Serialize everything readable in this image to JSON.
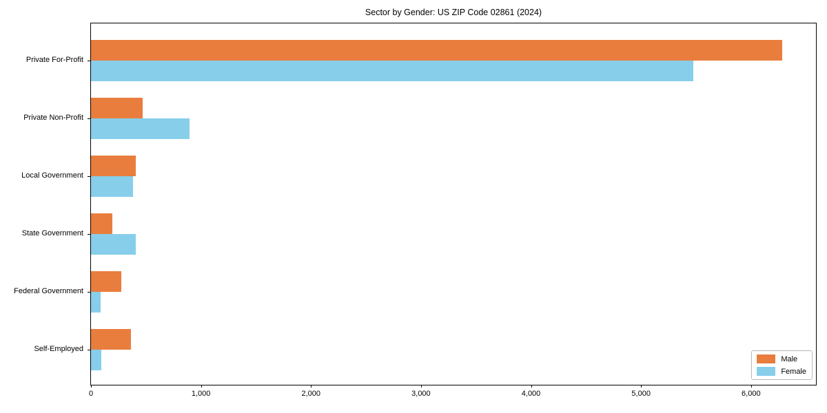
{
  "title": "Sector by Gender: US ZIP Code 02861 (2024)",
  "colors": {
    "male": "#e97d3d",
    "female": "#87ceeb",
    "axis": "#000000",
    "legend_border": "#b7b7b7",
    "background": "#ffffff"
  },
  "legend": {
    "position": "lower right",
    "items": [
      {
        "label": "Male",
        "color": "#e97d3d"
      },
      {
        "label": "Female",
        "color": "#87ceeb"
      }
    ]
  },
  "chart_data": {
    "type": "bar",
    "orientation": "horizontal",
    "title": "Sector by Gender: US ZIP Code 02861 (2024)",
    "categories": [
      "Private For-Profit",
      "Private Non-Profit",
      "Local Government",
      "State Government",
      "Federal Government",
      "Self-Employed"
    ],
    "series": [
      {
        "name": "Male",
        "color": "#e97d3d",
        "values": [
          6280,
          470,
          410,
          195,
          275,
          365
        ]
      },
      {
        "name": "Female",
        "color": "#87ceeb",
        "values": [
          5475,
          895,
          380,
          405,
          85,
          95
        ]
      }
    ],
    "xlabel": "",
    "ylabel": "",
    "xlim": [
      0,
      6590
    ],
    "x_ticks": [
      0,
      1000,
      2000,
      3000,
      4000,
      5000,
      6000
    ],
    "x_tick_labels": [
      "0",
      "1,000",
      "2,000",
      "3,000",
      "4,000",
      "5,000",
      "6,000"
    ],
    "grid": false,
    "legend_position": "lower right"
  }
}
